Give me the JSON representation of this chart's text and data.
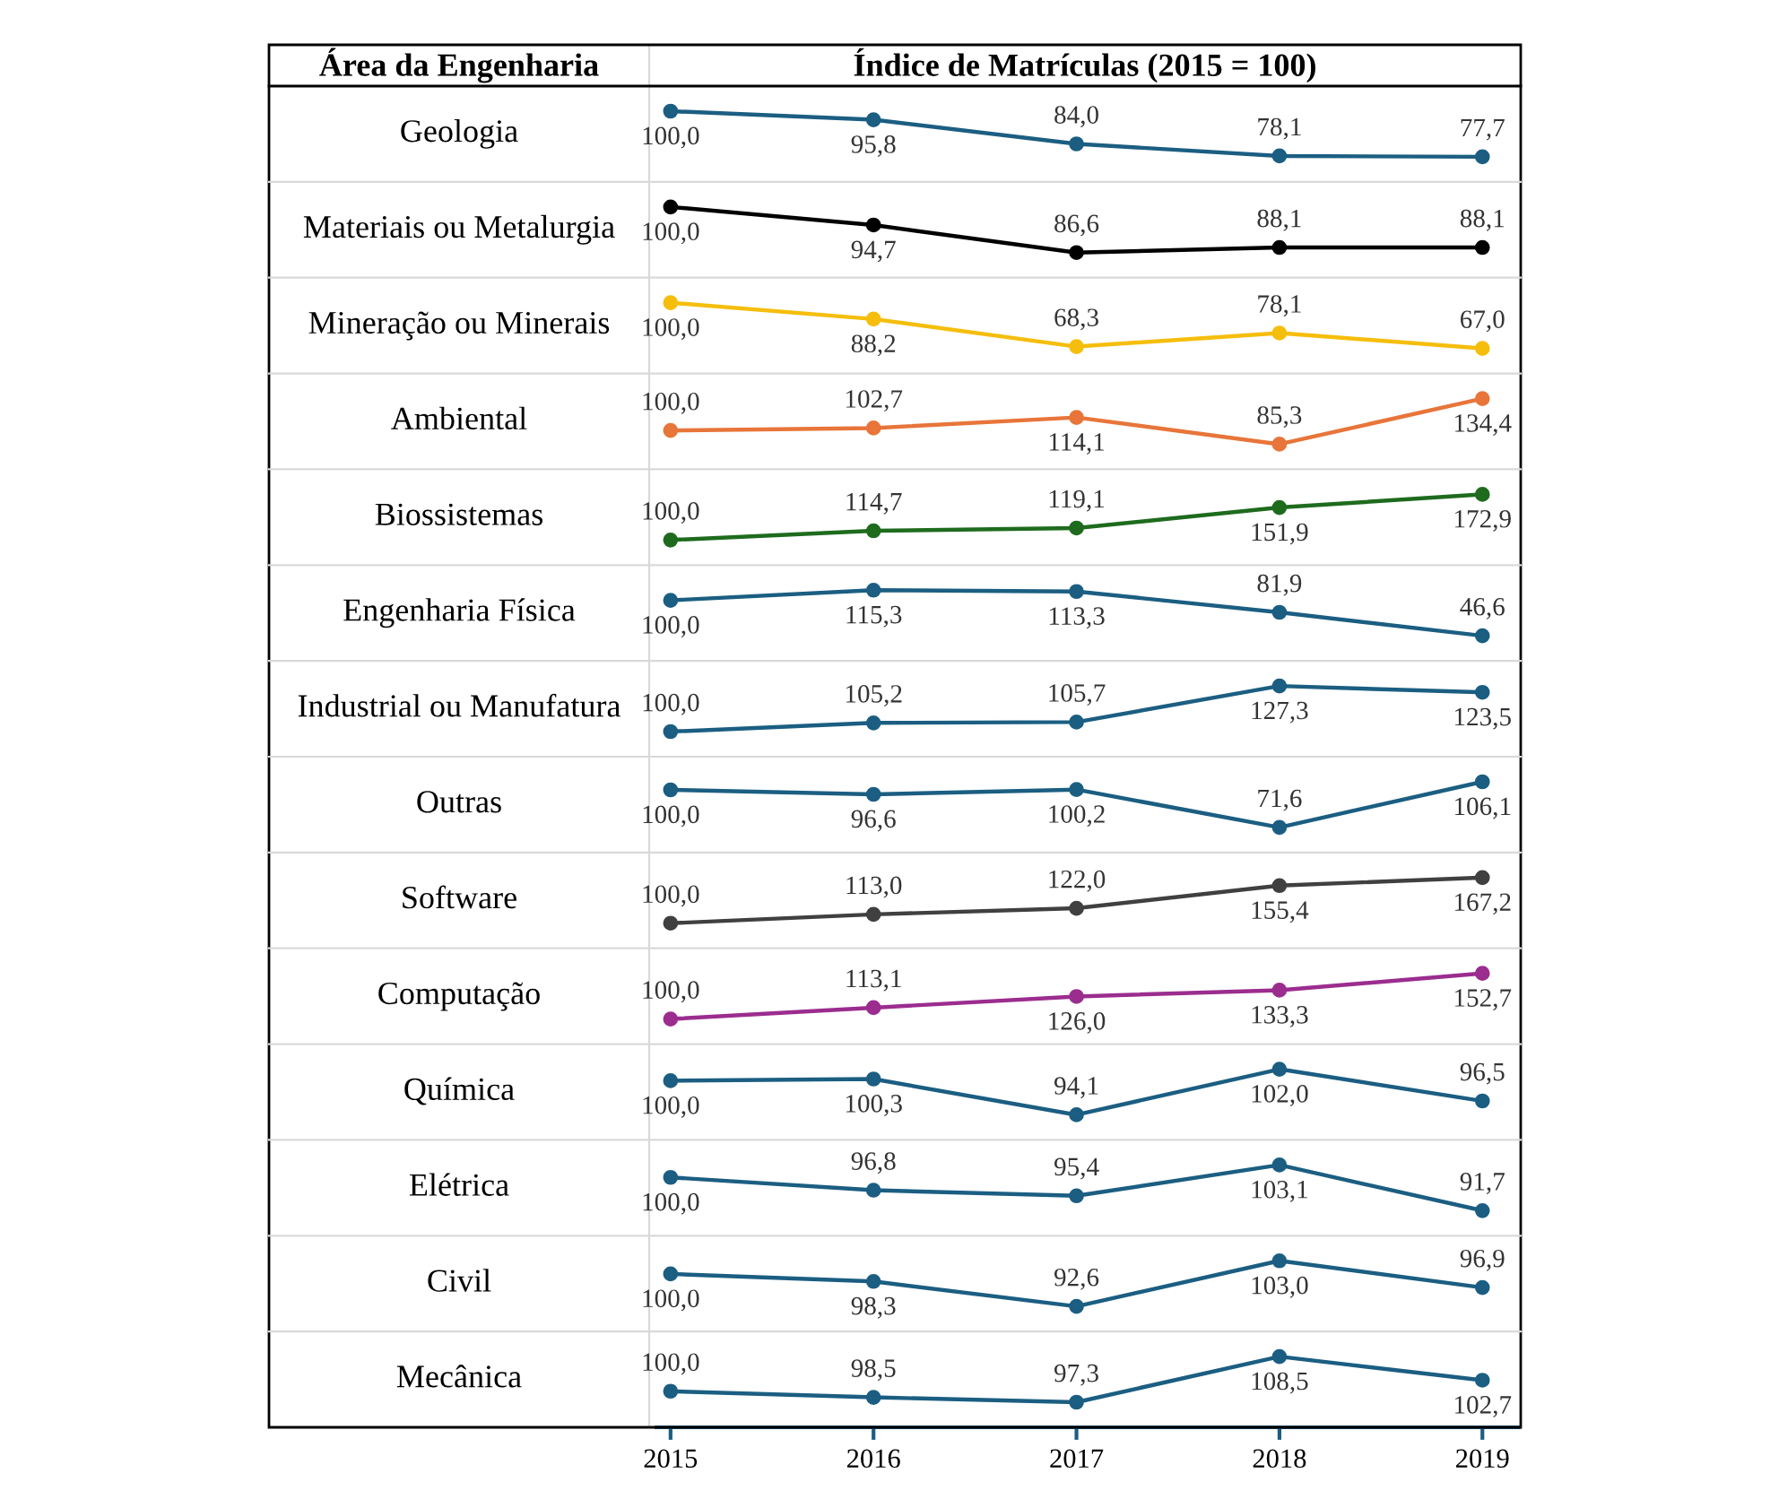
{
  "chart_data": [
    {
      "type": "line",
      "title": "Geologia",
      "annotations": [
        "Área da Engenharia",
        "Índice de Matrículas (2015 = 100)"
      ],
      "categories": [
        "2015",
        "2016",
        "2017",
        "2018",
        "2019"
      ],
      "values": [
        100.0,
        95.8,
        84.0,
        78.1,
        77.7
      ],
      "value_labels": [
        "100,0",
        "95,8",
        "84,0",
        "78,1",
        "77,7"
      ],
      "color": "#1b5e82",
      "marker": "circle",
      "tick_labels": false
    },
    {
      "type": "line",
      "title": "Materiais ou Metalurgia",
      "categories": [
        "2015",
        "2016",
        "2017",
        "2018",
        "2019"
      ],
      "values": [
        100.0,
        94.7,
        86.6,
        88.1,
        88.1
      ],
      "value_labels": [
        "100,0",
        "94,7",
        "86,6",
        "88,1",
        "88,1"
      ],
      "color": "#000000",
      "marker": "circle",
      "tick_labels": false
    },
    {
      "type": "line",
      "title": "Mineração ou Minerais",
      "categories": [
        "2015",
        "2016",
        "2017",
        "2018",
        "2019"
      ],
      "values": [
        100.0,
        88.2,
        68.3,
        78.1,
        67.0
      ],
      "value_labels": [
        "100,0",
        "88,2",
        "68,3",
        "78,1",
        "67,0"
      ],
      "color": "#f5be0c",
      "marker": "circle",
      "tick_labels": false
    },
    {
      "type": "line",
      "title": "Ambiental",
      "categories": [
        "2015",
        "2016",
        "2017",
        "2018",
        "2019"
      ],
      "values": [
        100.0,
        102.7,
        114.1,
        85.3,
        134.4
      ],
      "value_labels": [
        "100,0",
        "102,7",
        "114,1",
        "85,3",
        "134,4"
      ],
      "color": "#e8753a",
      "marker": "circle",
      "tick_labels": false
    },
    {
      "type": "line",
      "title": "Biossistemas",
      "categories": [
        "2015",
        "2016",
        "2017",
        "2018",
        "2019"
      ],
      "values": [
        100.0,
        114.7,
        119.1,
        151.9,
        172.9
      ],
      "value_labels": [
        "100,0",
        "114,7",
        "119,1",
        "151,9",
        "172,9"
      ],
      "color": "#1e6b1e",
      "marker": "circle",
      "tick_labels": false
    },
    {
      "type": "line",
      "title": "Engenharia Física",
      "categories": [
        "2015",
        "2016",
        "2017",
        "2018",
        "2019"
      ],
      "values": [
        100.0,
        115.3,
        113.3,
        81.9,
        46.6
      ],
      "value_labels": [
        "100,0",
        "115,3",
        "113,3",
        "81,9",
        "46,6"
      ],
      "color": "#1b5e82",
      "marker": "circle",
      "tick_labels": false
    },
    {
      "type": "line",
      "title": "Industrial ou Manufatura",
      "categories": [
        "2015",
        "2016",
        "2017",
        "2018",
        "2019"
      ],
      "values": [
        100.0,
        105.2,
        105.7,
        127.3,
        123.5
      ],
      "value_labels": [
        "100,0",
        "105,2",
        "105,7",
        "127,3",
        "123,5"
      ],
      "color": "#1b5e82",
      "marker": "circle",
      "tick_labels": false
    },
    {
      "type": "line",
      "title": "Outras",
      "categories": [
        "2015",
        "2016",
        "2017",
        "2018",
        "2019"
      ],
      "values": [
        100.0,
        96.6,
        100.2,
        71.6,
        106.1
      ],
      "value_labels": [
        "100,0",
        "96,6",
        "100,2",
        "71,6",
        "106,1"
      ],
      "color": "#1b5e82",
      "marker": "circle",
      "tick_labels": false
    },
    {
      "type": "line",
      "title": "Software",
      "categories": [
        "2015",
        "2016",
        "2017",
        "2018",
        "2019"
      ],
      "values": [
        100.0,
        113.0,
        122.0,
        155.4,
        167.2
      ],
      "value_labels": [
        "100,0",
        "113,0",
        "122,0",
        "155,4",
        "167,2"
      ],
      "color": "#404040",
      "marker": "circle",
      "tick_labels": false
    },
    {
      "type": "line",
      "title": "Computação",
      "categories": [
        "2015",
        "2016",
        "2017",
        "2018",
        "2019"
      ],
      "values": [
        100.0,
        113.1,
        126.0,
        133.3,
        152.7
      ],
      "value_labels": [
        "100,0",
        "113,1",
        "126,0",
        "133,3",
        "152,7"
      ],
      "color": "#9b2d8f",
      "marker": "circle",
      "tick_labels": false
    },
    {
      "type": "line",
      "title": "Química",
      "categories": [
        "2015",
        "2016",
        "2017",
        "2018",
        "2019"
      ],
      "values": [
        100.0,
        100.3,
        94.1,
        102.0,
        96.5
      ],
      "value_labels": [
        "100,0",
        "100,3",
        "94,1",
        "102,0",
        "96,5"
      ],
      "color": "#1b5e82",
      "marker": "circle",
      "tick_labels": false
    },
    {
      "type": "line",
      "title": "Elétrica",
      "categories": [
        "2015",
        "2016",
        "2017",
        "2018",
        "2019"
      ],
      "values": [
        100.0,
        96.8,
        95.4,
        103.1,
        91.7
      ],
      "value_labels": [
        "100,0",
        "96,8",
        "95,4",
        "103,1",
        "91,7"
      ],
      "color": "#1b5e82",
      "marker": "circle",
      "tick_labels": false
    },
    {
      "type": "line",
      "title": "Civil",
      "categories": [
        "2015",
        "2016",
        "2017",
        "2018",
        "2019"
      ],
      "values": [
        100.0,
        98.3,
        92.6,
        103.0,
        96.9
      ],
      "value_labels": [
        "100,0",
        "98,3",
        "92,6",
        "103,0",
        "96,9"
      ],
      "color": "#1b5e82",
      "marker": "circle",
      "tick_labels": false
    },
    {
      "type": "line",
      "title": "Mecânica",
      "categories": [
        "2015",
        "2016",
        "2017",
        "2018",
        "2019"
      ],
      "values": [
        100.0,
        98.5,
        97.3,
        108.5,
        102.7
      ],
      "value_labels": [
        "100,0",
        "98,5",
        "97,3",
        "108,5",
        "102,7"
      ],
      "color": "#1b5e82",
      "marker": "circle",
      "tick_labels": "x"
    }
  ]
}
